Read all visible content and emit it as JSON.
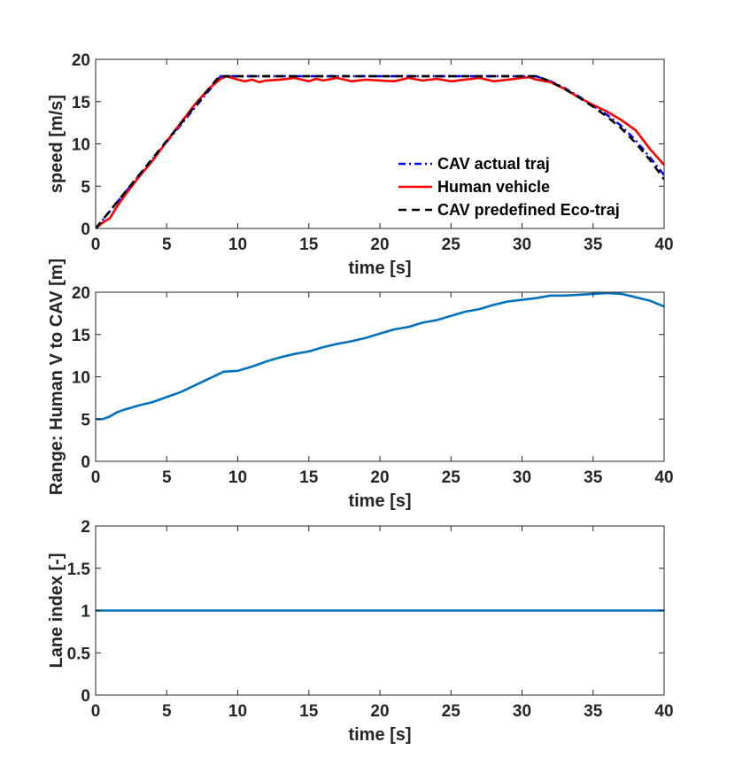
{
  "chart_data": [
    {
      "type": "line",
      "xlabel": "time [s]",
      "ylabel": "speed [m/s]",
      "xlim": [
        0,
        40
      ],
      "ylim": [
        0,
        20
      ],
      "xticks": [
        0,
        5,
        10,
        15,
        20,
        25,
        30,
        35,
        40
      ],
      "yticks": [
        0,
        5,
        10,
        15,
        20
      ],
      "legend": {
        "position": "bottom-right"
      },
      "series": [
        {
          "name": "CAV actual traj",
          "color": "#0000ff",
          "style": "dashdot",
          "x": [
            0,
            8.8,
            9.5,
            31,
            32,
            33,
            34,
            35,
            36,
            37,
            38,
            39,
            40
          ],
          "y": [
            0,
            18,
            18,
            18,
            17.4,
            16.6,
            15.6,
            14.5,
            13.4,
            12.1,
            10.4,
            8.4,
            6.3
          ]
        },
        {
          "name": "Human vehicle",
          "color": "#ff0000",
          "style": "solid",
          "x": [
            0,
            0.5,
            1,
            1.5,
            2,
            3,
            4,
            5,
            6,
            7,
            8,
            8.8,
            9.2,
            10,
            10.5,
            11,
            11.5,
            12,
            13,
            14,
            15,
            15.5,
            16,
            17,
            18,
            19,
            20,
            21,
            22,
            23,
            24,
            25,
            26,
            27,
            28,
            29,
            30,
            30.5,
            31,
            32,
            33,
            34,
            35,
            36,
            37,
            38,
            39,
            40
          ],
          "y": [
            0,
            0.7,
            1.2,
            2.6,
            3.8,
            6.0,
            8.0,
            10.3,
            12.5,
            14.7,
            16.6,
            17.7,
            18.0,
            17.6,
            17.4,
            17.6,
            17.3,
            17.5,
            17.6,
            17.8,
            17.4,
            17.7,
            17.5,
            17.8,
            17.4,
            17.6,
            17.5,
            17.4,
            17.8,
            17.5,
            17.7,
            17.4,
            17.6,
            17.8,
            17.4,
            17.6,
            17.8,
            17.9,
            17.6,
            17.3,
            16.5,
            15.5,
            14.6,
            13.8,
            12.8,
            11.6,
            9.4,
            7.5
          ]
        },
        {
          "name": "CAV predefined Eco-traj",
          "color": "#000000",
          "style": "dashed",
          "x": [
            0,
            8.7,
            9.2,
            31,
            32,
            33,
            34,
            35,
            36,
            37,
            38,
            39,
            40
          ],
          "y": [
            0,
            18,
            18,
            18,
            17.4,
            16.5,
            15.5,
            14.4,
            13.2,
            11.8,
            10.1,
            8.1,
            5.8
          ]
        }
      ]
    },
    {
      "type": "line",
      "xlabel": "time [s]",
      "ylabel": "Range: Human V to CAV [m]",
      "xlim": [
        0,
        40
      ],
      "ylim": [
        0,
        20
      ],
      "xticks": [
        0,
        5,
        10,
        15,
        20,
        25,
        30,
        35,
        40
      ],
      "yticks": [
        0,
        5,
        10,
        15,
        20
      ],
      "series": [
        {
          "name": "range",
          "color": "#0072bd",
          "style": "solid",
          "x": [
            0,
            0.5,
            1,
            1.5,
            2,
            3,
            4,
            5,
            6,
            7,
            8,
            9,
            10,
            11,
            12,
            13,
            14,
            15,
            16,
            17,
            18,
            19,
            20,
            21,
            22,
            23,
            24,
            25,
            26,
            27,
            28,
            29,
            30,
            31,
            32,
            33,
            34,
            35,
            36,
            37,
            38,
            39,
            40
          ],
          "y": [
            5,
            5.0,
            5.3,
            5.8,
            6.1,
            6.6,
            7.0,
            7.6,
            8.2,
            9.0,
            9.8,
            10.6,
            10.7,
            11.2,
            11.8,
            12.3,
            12.7,
            13.0,
            13.5,
            13.9,
            14.2,
            14.6,
            15.1,
            15.6,
            15.9,
            16.4,
            16.7,
            17.2,
            17.7,
            18.0,
            18.5,
            18.9,
            19.1,
            19.3,
            19.6,
            19.6,
            19.7,
            19.8,
            19.9,
            19.8,
            19.4,
            19.0,
            18.3
          ]
        }
      ]
    },
    {
      "type": "line",
      "xlabel": "time [s]",
      "ylabel": "Lane index [-]",
      "xlim": [
        0,
        40
      ],
      "ylim": [
        0,
        2
      ],
      "xticks": [
        0,
        5,
        10,
        15,
        20,
        25,
        30,
        35,
        40
      ],
      "yticks": [
        0,
        0.5,
        1,
        1.5,
        2
      ],
      "series": [
        {
          "name": "lane",
          "color": "#0072bd",
          "style": "solid",
          "x": [
            0,
            40
          ],
          "y": [
            1,
            1
          ]
        }
      ]
    }
  ]
}
